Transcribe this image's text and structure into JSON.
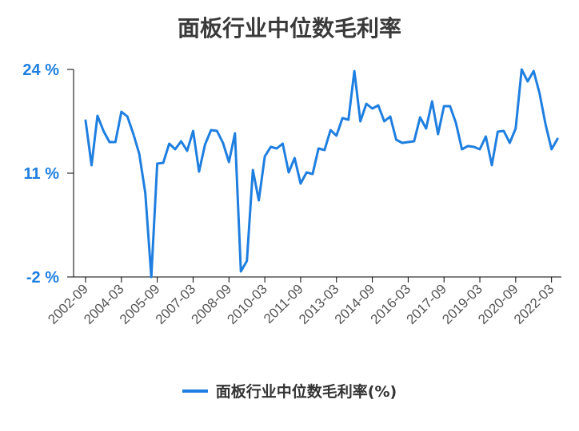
{
  "chart_data": {
    "type": "line",
    "title": "面板行业中位数毛利率",
    "xlabel": "",
    "ylabel": "",
    "ylim": [
      -2,
      24
    ],
    "yticks": [
      "24 %",
      "11 %",
      "-2 %"
    ],
    "ytick_values": [
      24,
      11,
      -2
    ],
    "xtick_labels": [
      "2002-09",
      "2004-03",
      "2005-09",
      "2007-03",
      "2008-09",
      "2010-03",
      "2011-09",
      "2013-03",
      "2014-09",
      "2016-03",
      "2017-09",
      "2019-03",
      "2020-09",
      "2022-03"
    ],
    "xtick_index": [
      0,
      6,
      12,
      18,
      24,
      30,
      36,
      42,
      48,
      54,
      60,
      66,
      72,
      78
    ],
    "grid": false,
    "legend_position": "bottom",
    "colors": {
      "line": "#1f7fe0"
    },
    "series": [
      {
        "name": "面板行业中位数毛利率(%)",
        "values": [
          17.6,
          12.0,
          18.2,
          16.3,
          14.9,
          14.9,
          18.7,
          18.1,
          15.9,
          13.4,
          8.5,
          -2.0,
          12.2,
          12.3,
          14.7,
          14.0,
          15.0,
          13.8,
          16.3,
          11.2,
          14.6,
          16.4,
          16.3,
          14.8,
          12.4,
          16.0,
          -1.3,
          0.0,
          11.4,
          7.6,
          13.1,
          14.3,
          14.1,
          14.7,
          11.1,
          12.9,
          9.7,
          11.1,
          10.9,
          14.1,
          13.9,
          16.4,
          15.7,
          17.9,
          17.7,
          23.8,
          17.5,
          19.7,
          19.1,
          19.5,
          17.5,
          18.1,
          15.2,
          14.8,
          14.9,
          15.0,
          18.0,
          16.6,
          20.0,
          15.9,
          19.4,
          19.4,
          17.3,
          14.0,
          14.4,
          14.3,
          14.0,
          15.6,
          12.0,
          16.2,
          16.3,
          14.8,
          16.6,
          24.0,
          22.5,
          23.8,
          21.0,
          17.1,
          14.0,
          15.3
        ]
      }
    ]
  }
}
